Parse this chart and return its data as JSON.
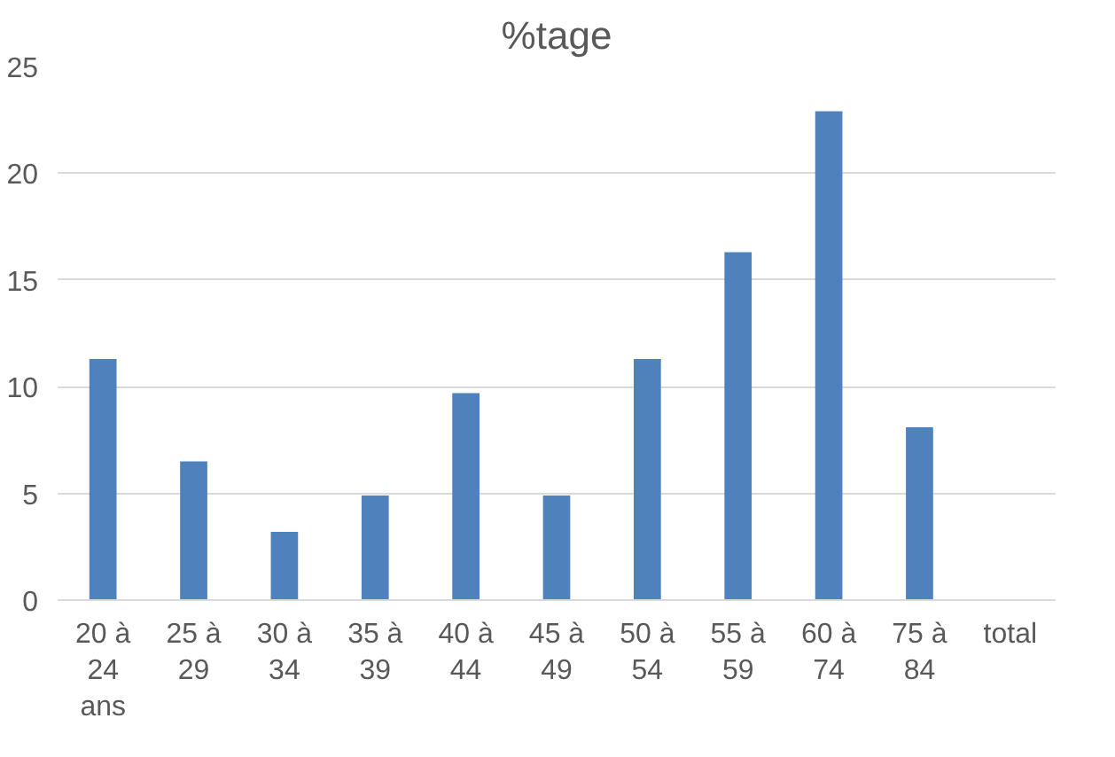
{
  "chart_data": {
    "type": "bar",
    "title": "%tage",
    "categories": [
      "20 à 24 ans",
      "25 à 29",
      "30 à 34",
      "35 à 39",
      "40 à 44",
      "45 à 49",
      "50 à 54",
      "55 à 59",
      "60 à 74",
      "75 à 84",
      "total"
    ],
    "values": [
      11.3,
      6.5,
      3.2,
      4.9,
      9.7,
      4.9,
      11.3,
      16.3,
      22.9,
      8.1,
      null
    ],
    "color": "#4f81bd",
    "ylim": [
      0,
      25
    ],
    "yticks": [
      0,
      5,
      10,
      15,
      20,
      25
    ],
    "grid": "y"
  }
}
